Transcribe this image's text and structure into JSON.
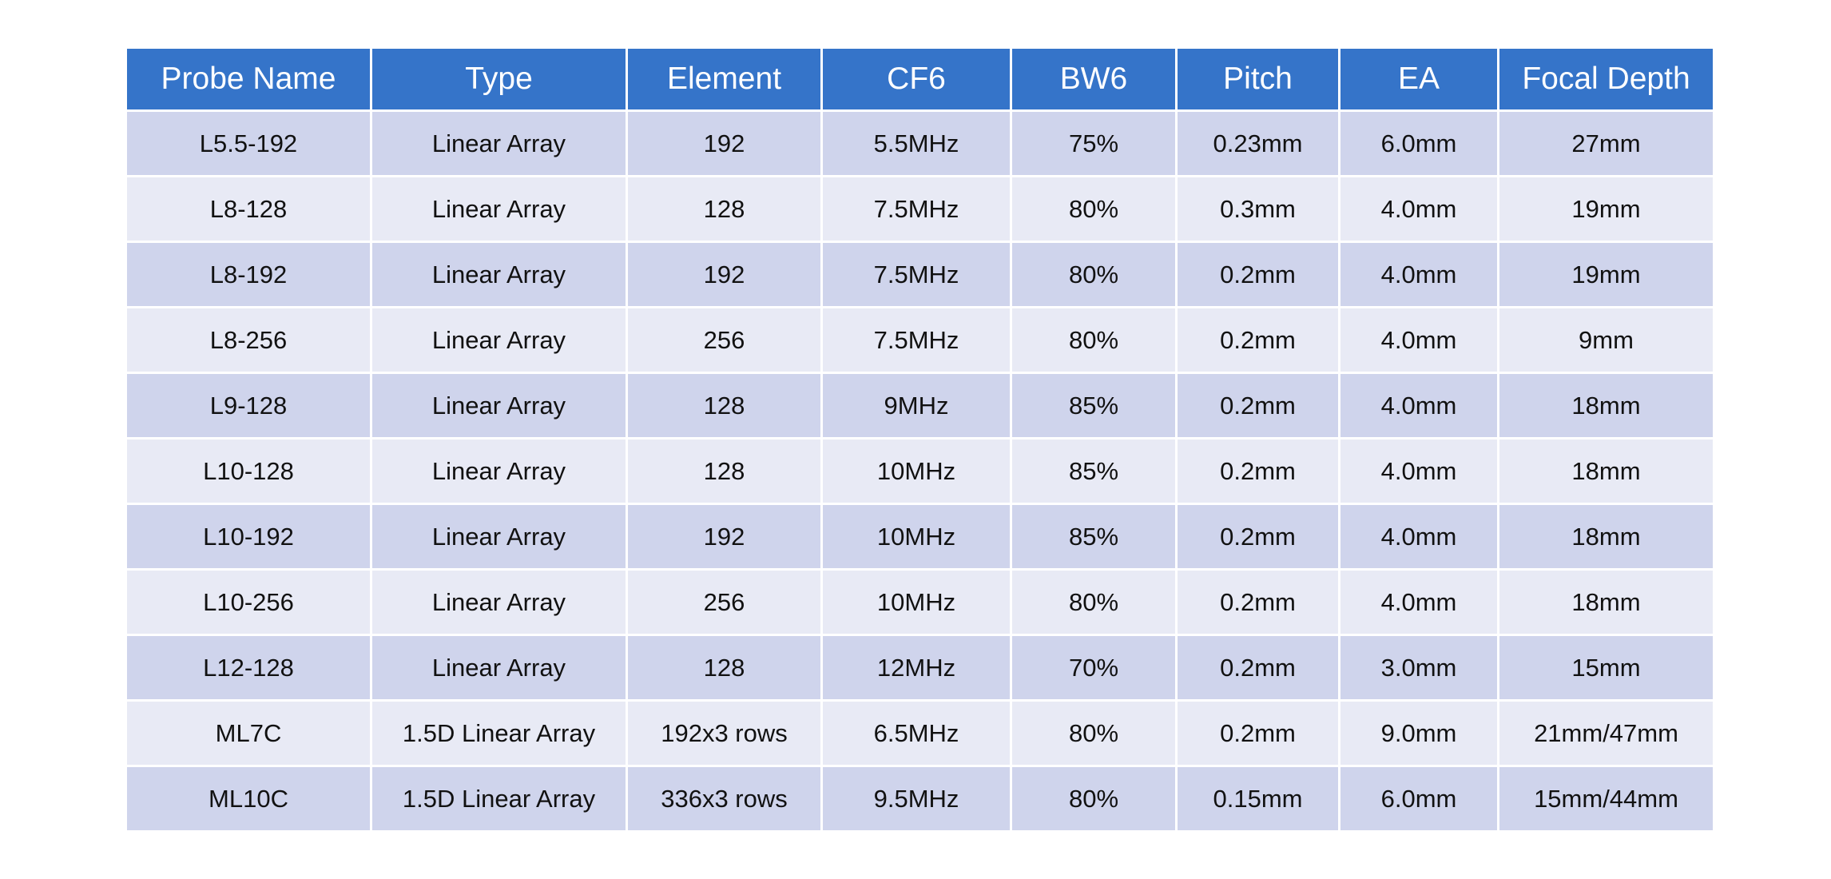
{
  "table": {
    "header": [
      "Probe Name",
      "Type",
      "Element",
      "CF6",
      "BW6",
      "Pitch",
      "EA",
      "Focal Depth"
    ],
    "rows": [
      [
        "L5.5-192",
        "Linear Array",
        "192",
        "5.5MHz",
        "75%",
        "0.23mm",
        "6.0mm",
        "27mm"
      ],
      [
        "L8-128",
        "Linear Array",
        "128",
        "7.5MHz",
        "80%",
        "0.3mm",
        "4.0mm",
        "19mm"
      ],
      [
        "L8-192",
        "Linear Array",
        "192",
        "7.5MHz",
        "80%",
        "0.2mm",
        "4.0mm",
        "19mm"
      ],
      [
        "L8-256",
        "Linear Array",
        "256",
        "7.5MHz",
        "80%",
        "0.2mm",
        "4.0mm",
        "9mm"
      ],
      [
        "L9-128",
        "Linear Array",
        "128",
        "9MHz",
        "85%",
        "0.2mm",
        "4.0mm",
        "18mm"
      ],
      [
        "L10-128",
        "Linear Array",
        "128",
        "10MHz",
        "85%",
        "0.2mm",
        "4.0mm",
        "18mm"
      ],
      [
        "L10-192",
        "Linear Array",
        "192",
        "10MHz",
        "85%",
        "0.2mm",
        "4.0mm",
        "18mm"
      ],
      [
        "L10-256",
        "Linear Array",
        "256",
        "10MHz",
        "80%",
        "0.2mm",
        "4.0mm",
        "18mm"
      ],
      [
        "L12-128",
        "Linear Array",
        "128",
        "12MHz",
        "70%",
        "0.2mm",
        "3.0mm",
        "15mm"
      ],
      [
        "ML7C",
        "1.5D Linear Array",
        "192x3 rows",
        "6.5MHz",
        "80%",
        "0.2mm",
        "9.0mm",
        "21mm/47mm"
      ],
      [
        "ML10C",
        "1.5D Linear Array",
        "336x3 rows",
        "9.5MHz",
        "80%",
        "0.15mm",
        "6.0mm",
        "15mm/44mm"
      ]
    ]
  }
}
